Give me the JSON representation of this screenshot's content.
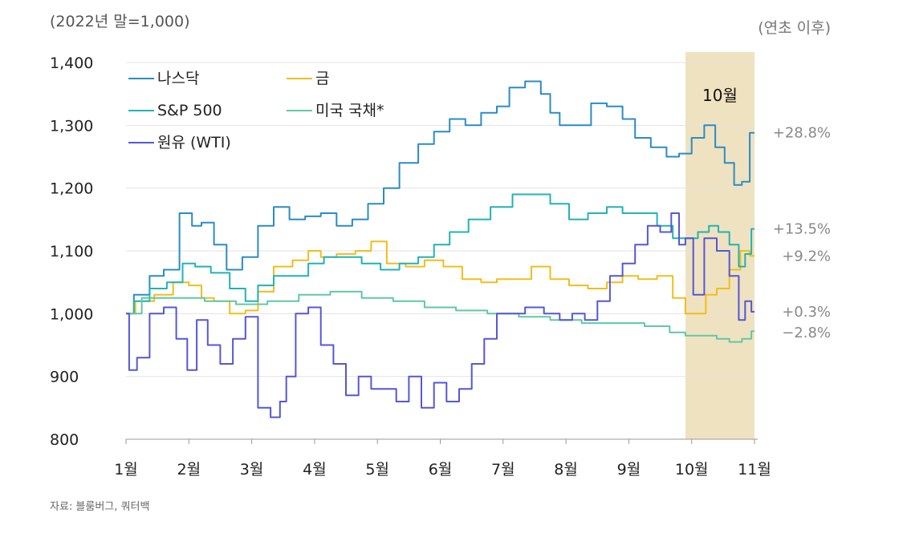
{
  "header": {
    "unit": "(2022년 말=1,000)",
    "range": "(연초 이후)"
  },
  "footer": {
    "source": "자료: 블룸버그, 쿼터백"
  },
  "chart_data": {
    "type": "line",
    "title": "",
    "xlabel": "",
    "ylabel": "",
    "ylim": [
      800,
      1400
    ],
    "yticks": [
      800,
      900,
      1000,
      1100,
      1200,
      1300,
      1400
    ],
    "ytick_labels": [
      "800",
      "900",
      "1,000",
      "1,100",
      "1,200",
      "1,300",
      "1,400"
    ],
    "x_labels": [
      "1월",
      "2월",
      "3월",
      "4월",
      "5월",
      "6월",
      "7월",
      "8월",
      "9월",
      "10월",
      "11월"
    ],
    "xlim": [
      0,
      10
    ],
    "grid": "horizontal",
    "legend_position": "top-left",
    "highlight": {
      "label": "10월",
      "from": 8.9,
      "to": 10.0,
      "color": "#efe2c0"
    },
    "colors": {
      "nasdaq": "#2a8cc6",
      "gold": "#f2bd1a",
      "sp500": "#22b3b3",
      "treasury": "#5fc9a3",
      "wti": "#5557d6"
    },
    "series": [
      {
        "name": "나스닥",
        "key": "nasdaq",
        "end_label": "+28.8%",
        "x": [
          0,
          0.25,
          0.5,
          0.7,
          1.0,
          1.1,
          1.3,
          1.5,
          1.7,
          2.0,
          2.2,
          2.5,
          2.7,
          3.0,
          3.2,
          3.5,
          3.7,
          4.0,
          4.2,
          4.5,
          4.8,
          5.0,
          5.3,
          5.5,
          5.8,
          6.0,
          6.2,
          6.5,
          6.7,
          6.8,
          7.0,
          7.3,
          7.5,
          7.8,
          8.0,
          8.2,
          8.5,
          8.7,
          8.9,
          9.1,
          9.3,
          9.45,
          9.6,
          9.75,
          9.85,
          10.0
        ],
        "values": [
          1000,
          1030,
          1060,
          1070,
          1160,
          1140,
          1145,
          1110,
          1070,
          1090,
          1140,
          1170,
          1150,
          1155,
          1160,
          1140,
          1150,
          1175,
          1200,
          1240,
          1270,
          1290,
          1310,
          1300,
          1320,
          1330,
          1360,
          1370,
          1350,
          1320,
          1300,
          1300,
          1335,
          1330,
          1310,
          1280,
          1265,
          1250,
          1255,
          1280,
          1300,
          1265,
          1240,
          1205,
          1210,
          1288
        ]
      },
      {
        "name": "금",
        "key": "gold",
        "end_label": "+9.2%",
        "x": [
          0,
          0.3,
          0.6,
          0.9,
          1.1,
          1.3,
          1.5,
          1.8,
          2.0,
          2.2,
          2.5,
          2.8,
          3.0,
          3.2,
          3.5,
          3.8,
          4.0,
          4.3,
          4.6,
          4.9,
          5.2,
          5.5,
          5.8,
          6.0,
          6.3,
          6.6,
          6.9,
          7.2,
          7.5,
          7.8,
          8.0,
          8.3,
          8.6,
          8.8,
          9.0,
          9.15,
          9.3,
          9.5,
          9.7,
          9.85,
          10.0
        ],
        "values": [
          1000,
          1020,
          1030,
          1050,
          1045,
          1025,
          1020,
          1000,
          1005,
          1035,
          1075,
          1085,
          1100,
          1090,
          1095,
          1100,
          1115,
          1080,
          1075,
          1085,
          1075,
          1055,
          1050,
          1055,
          1055,
          1075,
          1055,
          1045,
          1040,
          1050,
          1060,
          1055,
          1060,
          1025,
          1000,
          1000,
          1030,
          1040,
          1070,
          1100,
          1092
        ]
      },
      {
        "name": "S&P 500",
        "key": "sp500",
        "end_label": "+13.5%",
        "x": [
          0,
          0.25,
          0.5,
          0.8,
          1.0,
          1.2,
          1.5,
          1.8,
          2.0,
          2.2,
          2.5,
          2.8,
          3.0,
          3.3,
          3.6,
          3.9,
          4.2,
          4.5,
          4.8,
          5.0,
          5.3,
          5.6,
          6.0,
          6.3,
          6.6,
          6.9,
          7.2,
          7.5,
          7.8,
          8.0,
          8.3,
          8.6,
          8.8,
          9.0,
          9.2,
          9.35,
          9.5,
          9.7,
          9.8,
          9.9,
          10.0
        ],
        "values": [
          1000,
          1020,
          1040,
          1050,
          1080,
          1075,
          1065,
          1040,
          1020,
          1045,
          1060,
          1060,
          1080,
          1090,
          1090,
          1080,
          1070,
          1080,
          1090,
          1110,
          1130,
          1150,
          1170,
          1190,
          1190,
          1175,
          1150,
          1160,
          1170,
          1160,
          1160,
          1140,
          1120,
          1120,
          1130,
          1140,
          1130,
          1110,
          1075,
          1095,
          1135
        ]
      },
      {
        "name": "미국 국채*",
        "key": "treasury",
        "end_label": "−2.8%",
        "x": [
          0,
          0.5,
          1.0,
          1.5,
          2.0,
          2.5,
          3.0,
          3.5,
          4.0,
          4.5,
          5.0,
          5.5,
          6.0,
          6.5,
          7.0,
          7.5,
          8.0,
          8.5,
          8.8,
          9.0,
          9.3,
          9.5,
          9.7,
          9.9,
          10.0
        ],
        "values": [
          1000,
          1025,
          1025,
          1020,
          1015,
          1020,
          1030,
          1035,
          1025,
          1020,
          1010,
          1005,
          1000,
          995,
          990,
          985,
          985,
          980,
          970,
          965,
          965,
          960,
          955,
          960,
          972
        ]
      },
      {
        "name": "원유 (WTI)",
        "key": "wti",
        "end_label": "+0.3%",
        "x": [
          0,
          0.1,
          0.25,
          0.5,
          0.7,
          0.9,
          1.05,
          1.2,
          1.4,
          1.6,
          1.8,
          2.0,
          2.2,
          2.4,
          2.5,
          2.6,
          2.8,
          3.0,
          3.2,
          3.4,
          3.6,
          3.8,
          4.0,
          4.2,
          4.4,
          4.6,
          4.8,
          5.0,
          5.2,
          5.4,
          5.6,
          5.8,
          6.0,
          6.2,
          6.5,
          6.8,
          7.0,
          7.2,
          7.4,
          7.6,
          7.8,
          8.0,
          8.2,
          8.4,
          8.6,
          8.75,
          8.85,
          8.95,
          9.1,
          9.3,
          9.5,
          9.7,
          9.8,
          9.9,
          10.0
        ],
        "values": [
          1000,
          910,
          930,
          1000,
          1010,
          960,
          910,
          990,
          950,
          920,
          960,
          995,
          850,
          835,
          860,
          900,
          1000,
          1010,
          950,
          920,
          870,
          900,
          880,
          880,
          860,
          900,
          850,
          890,
          860,
          880,
          920,
          960,
          1000,
          1000,
          1010,
          1000,
          990,
          1000,
          990,
          1020,
          1060,
          1080,
          1110,
          1140,
          1130,
          1160,
          1110,
          1120,
          1030,
          1120,
          1100,
          1060,
          990,
          1020,
          1003
        ]
      }
    ]
  }
}
